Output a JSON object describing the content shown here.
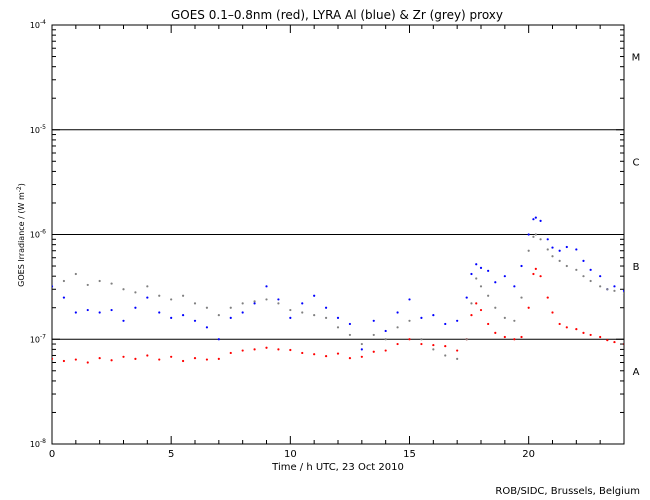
{
  "chart_data": {
    "type": "scatter",
    "title": "GOES 0.1–0.8nm (red), LYRA Al (blue) & Zr (grey) proxy",
    "xlabel": "Time / h UTC, 23 Oct 2010",
    "ylabel": "GOES Irradiance / (W m",
    "ylabel_sup": "-2",
    "ylabel_close": ")",
    "xlim": [
      0,
      24
    ],
    "ylim": [
      1e-08,
      0.0001
    ],
    "yscale": "log",
    "x_ticks": [
      0,
      5,
      10,
      15,
      20
    ],
    "x_tick_labels": [
      "0",
      "5",
      "10",
      "15",
      "20"
    ],
    "y_ticks": [
      1e-08,
      1e-07,
      1e-06,
      1e-05,
      0.0001
    ],
    "y_tick_labels": [
      {
        "base": "10",
        "exp": "-8"
      },
      {
        "base": "10",
        "exp": "-7"
      },
      {
        "base": "10",
        "exp": "-6"
      },
      {
        "base": "10",
        "exp": "-5"
      },
      {
        "base": "10",
        "exp": "-4"
      }
    ],
    "flare_class_lines": [
      1e-07,
      1e-06,
      1e-05
    ],
    "flare_classes": [
      {
        "label": "M",
        "y": 5e-05
      },
      {
        "label": "C",
        "y": 5e-06
      },
      {
        "label": "B",
        "y": 5e-07
      },
      {
        "label": "A",
        "y": 5e-08
      }
    ],
    "credit": "ROB/SIDC, Brussels, Belgium",
    "series": [
      {
        "name": "GOES 0.1–0.8nm",
        "color": "#ff0000",
        "x": [
          0,
          0.5,
          1,
          1.5,
          2,
          2.5,
          3,
          3.5,
          4,
          4.5,
          5,
          5.5,
          6,
          6.5,
          7,
          7.5,
          8,
          8.5,
          9,
          9.5,
          10,
          10.5,
          11,
          11.5,
          12,
          12.5,
          13,
          13.5,
          14,
          14.5,
          15,
          15.5,
          16,
          16.5,
          17,
          17.4,
          17.6,
          17.8,
          18,
          18.3,
          18.6,
          19,
          19.4,
          19.7,
          20,
          20.2,
          20.3,
          20.5,
          20.8,
          21,
          21.3,
          21.6,
          22,
          22.3,
          22.6,
          23,
          23.3,
          23.6,
          24
        ],
        "y": [
          6.5e-08,
          6.2e-08,
          6.4e-08,
          6e-08,
          6.6e-08,
          6.3e-08,
          6.8e-08,
          6.5e-08,
          7e-08,
          6.4e-08,
          6.8e-08,
          6.2e-08,
          6.6e-08,
          6.4e-08,
          6.5e-08,
          7.4e-08,
          7.8e-08,
          8e-08,
          8.3e-08,
          8e-08,
          7.9e-08,
          7.4e-08,
          7.2e-08,
          6.9e-08,
          7.3e-08,
          6.6e-08,
          6.8e-08,
          7.6e-08,
          7.8e-08,
          9e-08,
          1e-07,
          9e-08,
          8.8e-08,
          8.6e-08,
          7.8e-08,
          1e-07,
          1.7e-07,
          2.2e-07,
          1.9e-07,
          1.4e-07,
          1.15e-07,
          1.05e-07,
          1e-07,
          1.05e-07,
          2e-07,
          4.2e-07,
          4.7e-07,
          4e-07,
          2.5e-07,
          1.8e-07,
          1.4e-07,
          1.3e-07,
          1.25e-07,
          1.15e-07,
          1.1e-07,
          1.05e-07,
          9.8e-08,
          9.4e-08,
          9e-08
        ]
      },
      {
        "name": "LYRA Al proxy",
        "color": "#0000ff",
        "x": [
          0,
          0.5,
          1,
          1.5,
          2,
          2.5,
          3,
          3.5,
          4,
          4.5,
          5,
          5.5,
          6,
          6.5,
          7,
          7.5,
          8,
          8.5,
          9,
          9.5,
          10,
          10.5,
          11,
          11.5,
          12,
          12.5,
          13,
          13.5,
          14,
          14.5,
          15,
          15.5,
          16,
          16.5,
          17,
          17.4,
          17.6,
          17.8,
          18,
          18.3,
          18.6,
          19,
          19.4,
          19.7,
          20,
          20.2,
          20.3,
          20.5,
          20.8,
          21,
          21.3,
          21.6,
          22,
          22.3,
          22.6,
          23,
          23.3,
          23.6,
          24
        ],
        "y": [
          3.2e-07,
          2.5e-07,
          1.8e-07,
          1.9e-07,
          1.8e-07,
          1.9e-07,
          1.5e-07,
          2e-07,
          2.5e-07,
          1.8e-07,
          1.6e-07,
          1.7e-07,
          1.5e-07,
          1.3e-07,
          1e-07,
          1.6e-07,
          1.8e-07,
          2.2e-07,
          3.2e-07,
          2.4e-07,
          1.6e-07,
          2.2e-07,
          2.6e-07,
          2e-07,
          1.6e-07,
          1.4e-07,
          8e-08,
          1.5e-07,
          1.2e-07,
          1.8e-07,
          2.4e-07,
          1.6e-07,
          1.7e-07,
          1.4e-07,
          1.5e-07,
          2.5e-07,
          4.2e-07,
          5.2e-07,
          4.8e-07,
          4.5e-07,
          3.5e-07,
          4e-07,
          3.2e-07,
          5e-07,
          1e-06,
          1.4e-06,
          1.45e-06,
          1.35e-06,
          9e-07,
          7.5e-07,
          7e-07,
          7.6e-07,
          7.2e-07,
          5.6e-07,
          4.6e-07,
          4e-07,
          3e-07,
          3.2e-07,
          2.9e-07
        ]
      },
      {
        "name": "LYRA Zr proxy",
        "color": "#808080",
        "x": [
          0,
          0.5,
          1,
          1.5,
          2,
          2.5,
          3,
          3.5,
          4,
          4.5,
          5,
          5.5,
          6,
          6.5,
          7,
          7.5,
          8,
          8.5,
          9,
          9.5,
          10,
          10.5,
          11,
          11.5,
          12,
          12.5,
          13,
          13.5,
          14,
          14.5,
          15,
          15.5,
          16,
          16.5,
          17,
          17.4,
          17.6,
          17.8,
          18,
          18.3,
          18.6,
          19,
          19.4,
          19.7,
          20,
          20.2,
          20.3,
          20.5,
          20.8,
          21,
          21.3,
          21.6,
          22,
          22.3,
          22.6,
          23,
          23.3,
          23.6,
          24
        ],
        "y": [
          4e-07,
          3.6e-07,
          4.2e-07,
          3.3e-07,
          3.6e-07,
          3.4e-07,
          3e-07,
          2.8e-07,
          3.2e-07,
          2.6e-07,
          2.4e-07,
          2.6e-07,
          2.2e-07,
          2e-07,
          1.7e-07,
          2e-07,
          2.2e-07,
          2.3e-07,
          2.4e-07,
          2.2e-07,
          1.9e-07,
          1.8e-07,
          1.7e-07,
          1.6e-07,
          1.3e-07,
          1.1e-07,
          9e-08,
          1.1e-07,
          1e-07,
          1.3e-07,
          1.5e-07,
          1e-07,
          8e-08,
          7e-08,
          6.5e-08,
          1e-07,
          2.2e-07,
          3.8e-07,
          3.2e-07,
          2.6e-07,
          2e-07,
          1.6e-07,
          1.5e-07,
          2.5e-07,
          7e-07,
          9.5e-07,
          1e-06,
          9e-07,
          7.2e-07,
          6.2e-07,
          5.6e-07,
          5e-07,
          4.6e-07,
          4e-07,
          3.6e-07,
          3.2e-07,
          3e-07,
          2.9e-07,
          2.7e-07
        ]
      }
    ]
  }
}
